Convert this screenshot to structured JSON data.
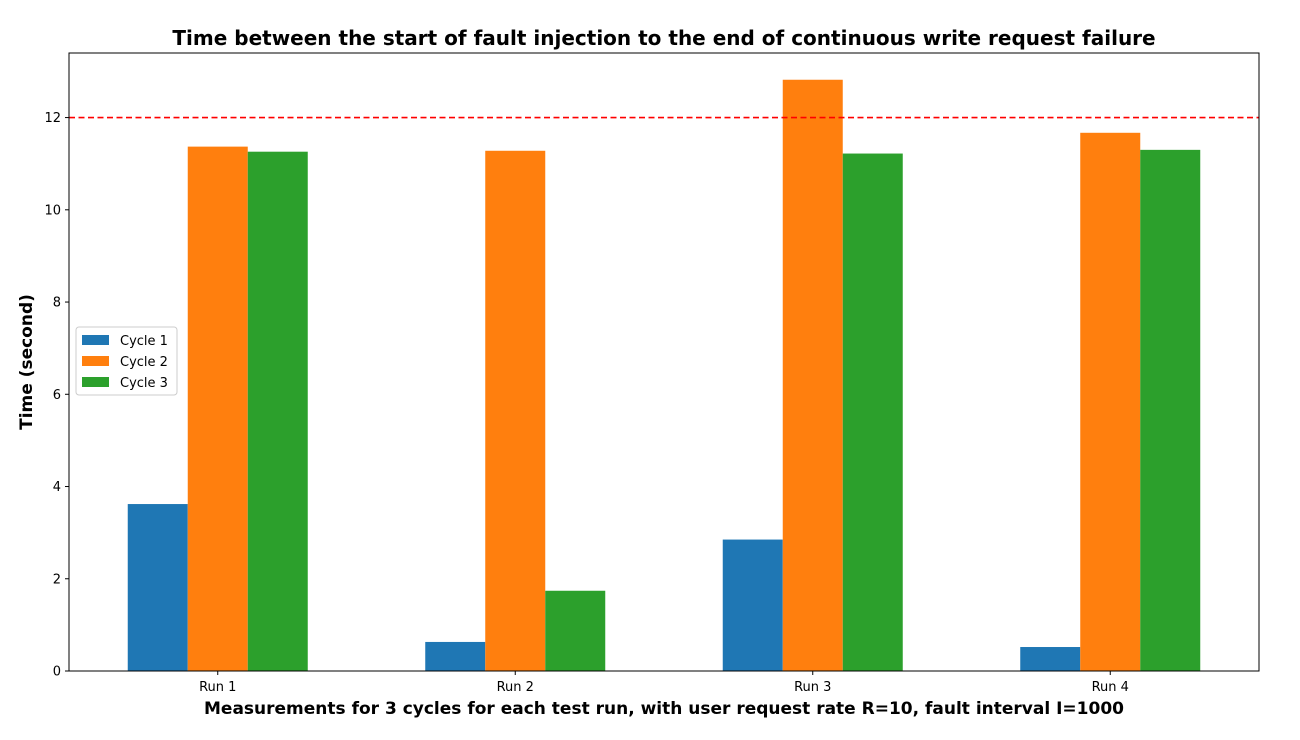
{
  "chart_data": {
    "type": "bar",
    "title": "Time between the start of fault injection to the end of continuous write request failure",
    "xlabel": "Measurements for 3 cycles for each test run, with user request rate R=10, fault interval I=1000",
    "ylabel": "Time (second)",
    "categories": [
      "Run 1",
      "Run 2",
      "Run 3",
      "Run 4"
    ],
    "series": [
      {
        "name": "Cycle 1",
        "color": "#1f77b4",
        "values": [
          3.62,
          0.63,
          2.85,
          0.52
        ]
      },
      {
        "name": "Cycle 2",
        "color": "#ff7f0e",
        "values": [
          11.37,
          11.28,
          12.82,
          11.67
        ]
      },
      {
        "name": "Cycle 3",
        "color": "#2ca02c",
        "values": [
          11.26,
          1.74,
          11.22,
          11.3
        ]
      }
    ],
    "ylim": [
      0,
      13.4
    ],
    "yticks": [
      0,
      2,
      4,
      6,
      8,
      10,
      12
    ],
    "threshold": {
      "value": 12,
      "color": "#ff0000",
      "style": "dashed"
    },
    "grid": false,
    "legend_position": "center-left"
  }
}
